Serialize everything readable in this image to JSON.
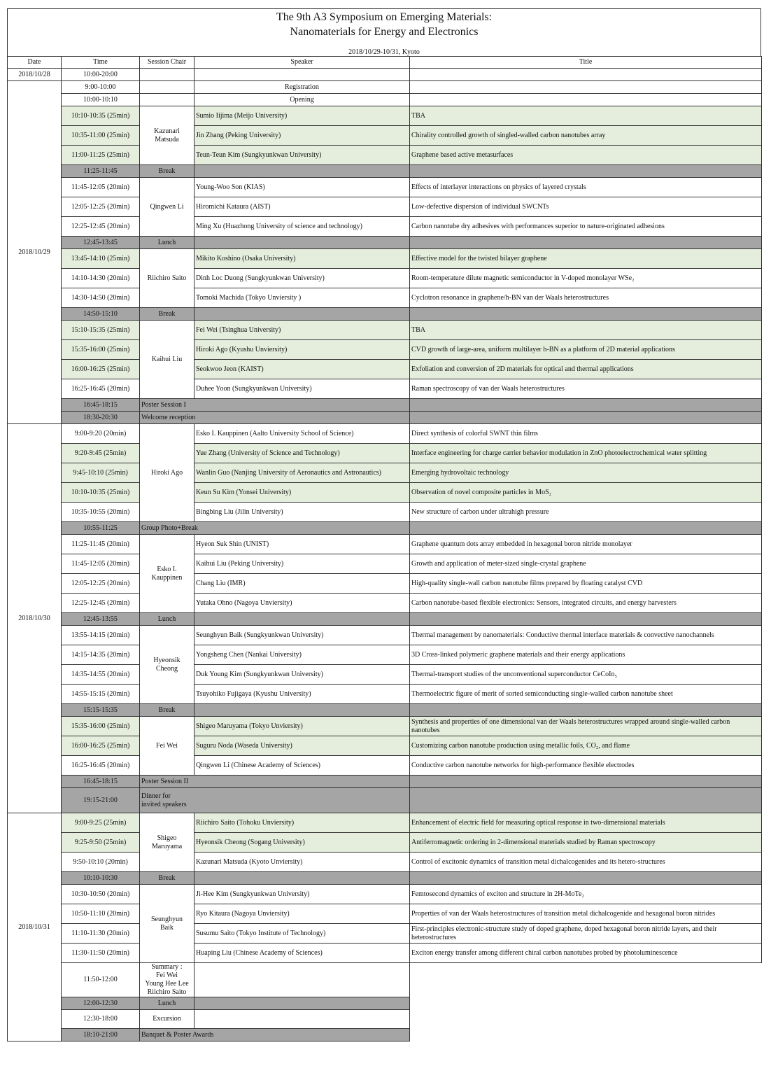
{
  "title_line1": "The 9th A3 Symposium on Emerging Materials:",
  "title_line2": "Nanomaterials for Energy and Electronics",
  "subtitle": "2018/10/29-10/31, Kyoto",
  "headers": [
    "Date",
    "Time",
    "Session Chair",
    "Speaker",
    "Title"
  ],
  "colors": {
    "talk_highlight": "#e5eddc",
    "break": "#a5a5a5"
  },
  "days": [
    {
      "date": "2018/10/28",
      "items": [
        {
          "kind": "plain",
          "time": "10:00-20:00",
          "chair": "",
          "speaker": "",
          "title": ""
        }
      ]
    },
    {
      "date": "2018/10/29",
      "items": [
        {
          "kind": "plain",
          "time": "9:00-10:00",
          "chair": "",
          "speaker": "Registration",
          "title": ""
        },
        {
          "kind": "plain",
          "time": "10:00-10:10",
          "chair": "",
          "speaker": "Opening",
          "title": ""
        },
        {
          "kind": "session",
          "chair": "Kazunari\nMatsuda",
          "talks": [
            {
              "time": "10:10-10:35 (25min)",
              "speaker": "Sumio Iijima (Meijo University)",
              "title": "TBA",
              "highlight": true
            },
            {
              "time": "10:35-11:00 (25min)",
              "speaker": "Jin Zhang (Peking University)",
              "title": "Chirality controlled growth of singled-walled carbon nanotubes array",
              "highlight": true
            },
            {
              "time": "11:00-11:25 (25min)",
              "speaker": "Teun-Teun Kim (Sungkyunkwan University)",
              "title": "Graphene based active metasurfaces",
              "highlight": true
            }
          ]
        },
        {
          "kind": "break",
          "time": "11:25-11:45",
          "label": "Break"
        },
        {
          "kind": "session",
          "chair": "Qingwen Li",
          "talks": [
            {
              "time": "11:45-12:05 (20min)",
              "speaker": "Young-Woo Son (KIAS)",
              "title": "Effects of interlayer interactions on physics of layered crystals",
              "highlight": false
            },
            {
              "time": "12:05-12:25 (20min)",
              "speaker": "Hiromichi Kataura (AIST)",
              "title": "Low-defective dispersion of individual SWCNTs",
              "highlight": false
            },
            {
              "time": "12:25-12:45 (20min)",
              "speaker": "Ming Xu (Huazhong University of science and technology)",
              "title": "Carbon nanotube dry adhesives with performances superior to nature-originated adhesions",
              "highlight": false
            }
          ]
        },
        {
          "kind": "break",
          "time": "12:45-13:45",
          "label": "Lunch"
        },
        {
          "kind": "session",
          "chair": "Riichiro Saito",
          "talks": [
            {
              "time": "13:45-14:10 (25min)",
              "speaker": "Mikito Koshino (Osaka University)",
              "title": "Effective model for the twisted bilayer graphene",
              "highlight": true
            },
            {
              "time": "14:10-14:30 (20min)",
              "speaker": "Dinh Loc Duong (Sungkyunkwan University)",
              "title": "Room-temperature dilute magnetic semiconductor in V-doped monolayer WSe₂",
              "highlight": false
            },
            {
              "time": "14:30-14:50 (20min)",
              "speaker": "Tomoki Machida (Tokyo Unviersity )",
              "title": "Cyclotron resonance in graphene/h-BN van der Waals  heterostructures",
              "highlight": false
            }
          ]
        },
        {
          "kind": "break",
          "time": "14:50-15:10",
          "label": "Break"
        },
        {
          "kind": "session",
          "chair": "Kaihui Liu",
          "talks": [
            {
              "time": "15:10-15:35 (25min)",
              "speaker": "Fei Wei (Tsinghua University)",
              "title": "TBA",
              "highlight": true
            },
            {
              "time": "15:35-16:00 (25min)",
              "speaker": "Hiroki Ago (Kyushu Unviersity)",
              "title": "CVD growth of large-area, uniform multilayer h-BN as a platform of 2D material applications",
              "highlight": true
            },
            {
              "time": "16:00-16:25 (25min)",
              "speaker": "Seokwoo Jeon (KAIST)",
              "title": "Exfoliation and conversion of 2D materials for optical and thermal applications",
              "highlight": true
            },
            {
              "time": "16:25-16:45 (20min)",
              "speaker": "Duhee Yoon (Sungkyunkwan University)",
              "title": "Raman spectroscopy of van der Waals heterostructures",
              "highlight": false
            }
          ]
        },
        {
          "kind": "event",
          "time": "16:45-18:15",
          "label": "Poster Session I"
        },
        {
          "kind": "event",
          "time": "18:30-20:30",
          "label": "Welcome reception"
        }
      ]
    },
    {
      "date": "2018/10/30",
      "items": [
        {
          "kind": "session",
          "chair": "Hiroki Ago",
          "talks": [
            {
              "time": "9:00-9:20 (20min)",
              "speaker": "Esko I. Kauppinen (Aalto University School of Science)",
              "title": "Direct synthesis of colorful SWNT thin films",
              "highlight": false
            },
            {
              "time": "9:20-9:45 (25min)",
              "speaker": "Yue Zhang (University of Science and Technology)",
              "title": "Interface engineering for charge carrier behavior modulation in ZnO photoelectrochemical water splitting",
              "highlight": true
            },
            {
              "time": "9:45-10:10 (25min)",
              "speaker": "Wanlin Guo (Nanjing University of Aeronautics and Astronautics)",
              "title": "Emerging hydrovoltaic technology",
              "highlight": true
            },
            {
              "time": "10:10-10:35 (25min)",
              "speaker": "Keun Su Kim (Yonsei University)",
              "title": "Observation of novel composite particles in MoS₂",
              "highlight": true
            },
            {
              "time": "10:35-10:55 (20min)",
              "speaker": "Bingbing Liu (Jilin University)",
              "title": "New structure of carbon under ultrahigh pressure",
              "highlight": false
            }
          ]
        },
        {
          "kind": "event",
          "time": "10:55-11:25",
          "label": "Group Photo+Break"
        },
        {
          "kind": "session",
          "chair": "Esko I.\nKauppinen",
          "talks": [
            {
              "time": "11:25-11:45 (20min)",
              "speaker": "Hyeon Suk Shin (UNIST)",
              "title": "Graphene quantum dots array embedded in hexagonal boron nitride monolayer",
              "highlight": false
            },
            {
              "time": "11:45-12:05 (20min)",
              "speaker": "Kaihui Liu (Peking University)",
              "title": "Growth and application of meter-sized single-crystal graphene",
              "highlight": false
            },
            {
              "time": "12:05-12:25 (20min)",
              "speaker": "Chang Liu (IMR)",
              "title": "High-quality single-wall carbon nanotube films prepared by floating catalyst CVD",
              "highlight": false
            },
            {
              "time": "12:25-12:45 (20min)",
              "speaker": "Yutaka Ohno (Nagoya Unviersity)",
              "title": "Carbon nanotube-based flexible electronics: Sensors, integrated circuits, and energy harvesters",
              "highlight": false
            }
          ]
        },
        {
          "kind": "break",
          "time": "12:45-13:55",
          "label": "Lunch"
        },
        {
          "kind": "session",
          "chair": "Hyeonsik\nCheong",
          "talks": [
            {
              "time": "13:55-14:15 (20min)",
              "speaker": "Seunghyun Baik (Sungkyunkwan University)",
              "title": "Thermal management by nanomaterials: Conductive thermal interface materials & convective nanochannels",
              "highlight": false
            },
            {
              "time": "14:15-14:35 (20min)",
              "speaker": "Yongsheng Chen (Nankai University)",
              "title": "3D Cross-linked polymeric graphene materials and their energy applications",
              "highlight": false
            },
            {
              "time": "14:35-14:55 (20min)",
              "speaker": "Duk Young Kim (Sungkyunkwan University)",
              "title": "Thermal-transport studies of the unconventional superconductor CeCoIn₅",
              "highlight": false
            },
            {
              "time": "14:55-15:15 (20min)",
              "speaker": "Tsuyohiko Fujigaya (Kyushu University)",
              "title": "Thermoelectric figure of merit of sorted semiconducting single-walled carbon nanotube sheet",
              "highlight": false
            }
          ]
        },
        {
          "kind": "break",
          "time": "15:15-15:35",
          "label": "Break"
        },
        {
          "kind": "session",
          "chair": "Fei Wei",
          "talks": [
            {
              "time": "15:35-16:00 (25min)",
              "speaker": "Shigeo Maruyama (Tokyo Unviersity)",
              "title": "Synthesis and properties of one dimensional van der Waals heterostructures wrapped around single-walled carbon nanotubes",
              "highlight": true
            },
            {
              "time": "16:00-16:25 (25min)",
              "speaker": "Suguru Noda (Waseda University)",
              "title": "Customizing carbon nanotube production using metallic foils, CO₂, and flame",
              "highlight": true
            },
            {
              "time": "16:25-16:45 (20min)",
              "speaker": "Qingwen Li (Chinese Academy of Sciences)",
              "title": "Conductive carbon nanotube networks for high-performance flexible electrodes",
              "highlight": false
            }
          ]
        },
        {
          "kind": "event",
          "time": "16:45-18:15",
          "label": "Poster Session II"
        },
        {
          "kind": "event",
          "time": "19:15-21:00",
          "label": "Dinner for\n invited speakers"
        }
      ]
    },
    {
      "date": "2018/10/31",
      "items": [
        {
          "kind": "session",
          "chair": "Shigeo\nMaruyama",
          "talks": [
            {
              "time": "9:00-9:25 (25min)",
              "speaker": "Riichiro Saito (Tohoku Unviersity)",
              "title": "Enhancement of electric field for measuring optical response in two-dimensional materials",
              "highlight": true
            },
            {
              "time": "9:25-9:50 (25min)",
              "speaker": "Hyeonsik Cheong (Sogang University)",
              "title": "Antiferromagnetic ordering in 2-dimensional materials studied by Raman spectroscopy",
              "highlight": true
            },
            {
              "time": "9:50-10:10 (20min)",
              "speaker": "Kazunari Matsuda (Kyoto Unviersity)",
              "title": "Control of excitonic dynamics of transition metal dichalcogenides and its hetero-structures",
              "highlight": false
            }
          ]
        },
        {
          "kind": "break",
          "time": "10:10-10:30",
          "label": "Break"
        },
        {
          "kind": "session",
          "chair": "Seunghyun\nBaik",
          "talks": [
            {
              "time": "10:30-10:50 (20min)",
              "speaker": "Ji-Hee Kim (Sungkyunkwan University)",
              "title": "Femtosecond dynamics of exciton and structure in 2H-MoTe₂",
              "highlight": false
            },
            {
              "time": "10:50-11:10 (20min)",
              "speaker": "Ryo Kitaura (Nagoya Unviersity)",
              "title": "Properties of van der Waals heterostructures of transition metal dichalcogenide and hexagonal boron nitrides",
              "highlight": false
            },
            {
              "time": "11:10-11:30 (20min)",
              "speaker": "Susumu Saito (Tokyo Institute of Technology)",
              "title": "First-principles electronic-structure study of doped graphene, doped hexagonal boron nitride layers, and their heterostructures",
              "highlight": false
            },
            {
              "time": "11:30-11:50 (20min)",
              "speaker": "Huaping Liu (Chinese Academy of Sciences)",
              "title": "Exciton energy transfer among different chiral carbon nanotubes probed by photoluminescence",
              "highlight": false
            }
          ]
        },
        {
          "kind": "plain",
          "time": "11:50-12:00",
          "chair": "Summary :\nFei Wei\nYoung Hee Lee\nRiichiro Saito",
          "speaker": "",
          "notitle": true
        },
        {
          "kind": "break",
          "time": "12:00-12:30",
          "label": "Lunch",
          "notitle": true
        },
        {
          "kind": "plain",
          "time": "12:30-18:00",
          "chair": "Excursion",
          "speaker": "",
          "notitle": true
        },
        {
          "kind": "event",
          "time": "18:10-21:00",
          "label": "Banquet & Poster Awards",
          "notitle": true
        }
      ]
    }
  ]
}
